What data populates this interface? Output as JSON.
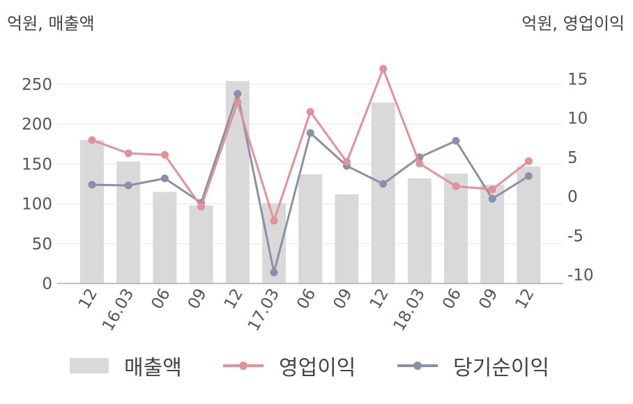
{
  "units": {
    "left": "억원, 매출액",
    "right": "억원, 영업이익"
  },
  "chart_data": {
    "type": "bar+line",
    "categories": [
      "12",
      "16.03",
      "06",
      "09",
      "12",
      "17.03",
      "06",
      "09",
      "12",
      "18.03",
      "06",
      "09",
      "12"
    ],
    "series": [
      {
        "name": "매출액",
        "type": "bar",
        "axis": "left",
        "color": "#d9d9d9",
        "values": [
          180,
          153,
          115,
          98,
          254,
          101,
          137,
          112,
          227,
          132,
          138,
          124,
          147
        ]
      },
      {
        "name": "영업이익",
        "type": "line",
        "axis": "right",
        "color": "#e39097",
        "values": [
          7.2,
          5.5,
          5.3,
          -1.3,
          12.0,
          -3.1,
          10.8,
          4.4,
          16.3,
          4.2,
          1.3,
          0.9,
          4.5
        ]
      },
      {
        "name": "당기순이익",
        "type": "line",
        "axis": "right",
        "color": "#8a90a8",
        "values": [
          1.5,
          1.4,
          2.3,
          -0.8,
          13.1,
          -9.7,
          8.1,
          3.9,
          1.6,
          5.0,
          7.1,
          -0.3,
          2.6
        ]
      }
    ],
    "y_left": {
      "ticks": [
        "0",
        "50",
        "100",
        "150",
        "200",
        "250"
      ],
      "lim": [
        0,
        250
      ]
    },
    "y_right": {
      "ticks": [
        "-10",
        "-5",
        "0",
        "5",
        "10",
        "15"
      ],
      "lim": [
        -10,
        15
      ]
    },
    "grid": "horizontal",
    "legend": "bottom"
  }
}
